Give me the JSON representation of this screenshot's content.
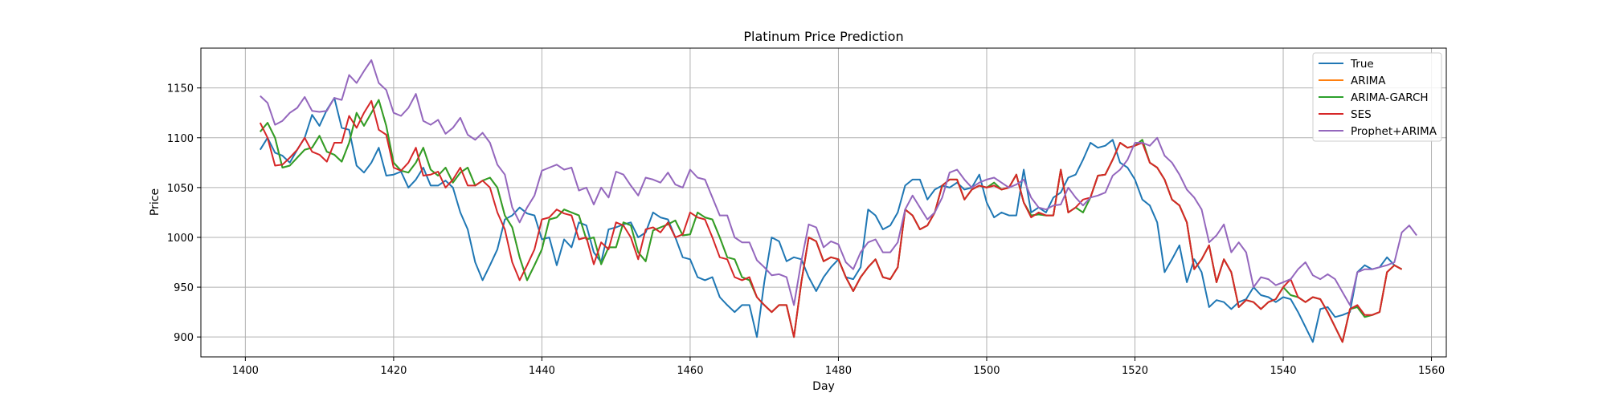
{
  "chart_data": {
    "type": "line",
    "title": "Platinum Price Prediction",
    "xlabel": "Day",
    "ylabel": "Price",
    "xlim": [
      1394,
      1562
    ],
    "ylim": [
      880,
      1190
    ],
    "xticks": [
      1400,
      1420,
      1440,
      1460,
      1480,
      1500,
      1520,
      1540,
      1560
    ],
    "yticks": [
      900,
      950,
      1000,
      1050,
      1100,
      1150
    ],
    "grid": true,
    "legend_position": "top-right",
    "x_start": 1402,
    "series": [
      {
        "name": "True",
        "color": "#1f77b4",
        "values": [
          1088,
          1100,
          1085,
          1082,
          1075,
          1088,
          1100,
          1123,
          1112,
          1128,
          1140,
          1110,
          1108,
          1072,
          1065,
          1075,
          1090,
          1062,
          1063,
          1066,
          1050,
          1058,
          1070,
          1052,
          1052,
          1057,
          1050,
          1025,
          1008,
          975,
          957,
          972,
          988,
          1018,
          1022,
          1030,
          1024,
          1022,
          998,
          1000,
          972,
          998,
          990,
          1015,
          1012,
          985,
          975,
          1008,
          1010,
          1013,
          1015,
          1000,
          1005,
          1025,
          1020,
          1018,
          1000,
          980,
          978,
          960,
          957,
          960,
          940,
          932,
          925,
          932,
          932,
          900,
          955,
          1000,
          996,
          976,
          980,
          978,
          960,
          946,
          960,
          970,
          978,
          960,
          958,
          970,
          1028,
          1022,
          1008,
          1012,
          1025,
          1052,
          1058,
          1058,
          1038,
          1048,
          1052,
          1050,
          1055,
          1048,
          1050,
          1063,
          1035,
          1020,
          1025,
          1022,
          1022,
          1068,
          1025,
          1030,
          1025,
          1040,
          1045,
          1060,
          1063,
          1078,
          1095,
          1090,
          1092,
          1098,
          1075,
          1070,
          1058,
          1038,
          1032,
          1015,
          965,
          978,
          992,
          955,
          978,
          965,
          930,
          937,
          935,
          928,
          935,
          938,
          950,
          942,
          940,
          935,
          940,
          938,
          925,
          910,
          895,
          928,
          930,
          920,
          922,
          925,
          965,
          972,
          968,
          970,
          980,
          972,
          968
        ]
      },
      {
        "name": "ARIMA",
        "color": "#ff7f0e",
        "values": [
          1106,
          1115,
          1100,
          1070,
          1072,
          1080,
          1088,
          1090,
          1102,
          1086,
          1083,
          1076,
          1095,
          1125,
          1112,
          1125,
          1138,
          1112,
          1075,
          1067,
          1065,
          1075,
          1090,
          1068,
          1062,
          1070,
          1055,
          1065,
          1070,
          1052,
          1057,
          1060,
          1050,
          1022,
          1010,
          980,
          957,
          972,
          988,
          1018,
          1020,
          1028,
          1025,
          1022,
          998,
          1000,
          973,
          990,
          990,
          1015,
          1012,
          985,
          976,
          1007,
          1010,
          1013,
          1017,
          1002,
          1003,
          1025,
          1020,
          1018,
          1000,
          980,
          978,
          960,
          957,
          940,
          932,
          925,
          932,
          932,
          900,
          955,
          1000,
          996,
          976,
          980,
          978,
          960,
          946,
          960,
          970,
          978,
          960,
          958,
          970,
          1028,
          1022,
          1008,
          1012,
          1025,
          1052,
          1058,
          1058,
          1038,
          1048,
          1052,
          1050,
          1055,
          1048,
          1050,
          1063,
          1035,
          1022,
          1023,
          1022,
          1022,
          1068,
          1025,
          1030,
          1025,
          1040,
          1062,
          1063,
          1078,
          1095,
          1090,
          1092,
          1098,
          1075,
          1070,
          1058,
          1038,
          1032,
          1015,
          968,
          978,
          992,
          955,
          978,
          965,
          930,
          937,
          935,
          928,
          935,
          938,
          950,
          942,
          940,
          935,
          940,
          938,
          925,
          910,
          895,
          928,
          930,
          920,
          922,
          925,
          965,
          972,
          968
        ]
      },
      {
        "name": "ARIMA-GARCH",
        "color": "#2ca02c",
        "values": [
          1106,
          1115,
          1100,
          1070,
          1072,
          1080,
          1088,
          1090,
          1102,
          1086,
          1083,
          1076,
          1095,
          1125,
          1112,
          1125,
          1138,
          1112,
          1075,
          1067,
          1065,
          1075,
          1090,
          1068,
          1062,
          1070,
          1055,
          1065,
          1070,
          1052,
          1057,
          1060,
          1050,
          1022,
          1010,
          980,
          957,
          972,
          988,
          1018,
          1020,
          1028,
          1025,
          1022,
          998,
          1000,
          973,
          990,
          990,
          1015,
          1012,
          985,
          976,
          1007,
          1010,
          1013,
          1017,
          1002,
          1003,
          1025,
          1020,
          1018,
          1000,
          980,
          978,
          960,
          957,
          940,
          932,
          925,
          932,
          932,
          900,
          955,
          1000,
          996,
          976,
          980,
          978,
          960,
          946,
          960,
          970,
          978,
          960,
          958,
          970,
          1028,
          1022,
          1008,
          1012,
          1025,
          1052,
          1058,
          1058,
          1038,
          1048,
          1052,
          1050,
          1055,
          1048,
          1050,
          1063,
          1035,
          1022,
          1023,
          1022,
          1022,
          1068,
          1025,
          1030,
          1025,
          1040,
          1062,
          1063,
          1078,
          1095,
          1090,
          1092,
          1098,
          1075,
          1070,
          1058,
          1038,
          1032,
          1015,
          968,
          978,
          992,
          955,
          978,
          965,
          930,
          937,
          935,
          928,
          935,
          938,
          950,
          942,
          940,
          935,
          940,
          938,
          925,
          910,
          895,
          928,
          930,
          920,
          922,
          925,
          965,
          972,
          968
        ]
      },
      {
        "name": "SES",
        "color": "#d62728",
        "values": [
          1115,
          1100,
          1072,
          1073,
          1080,
          1088,
          1100,
          1086,
          1083,
          1076,
          1095,
          1095,
          1122,
          1110,
          1125,
          1137,
          1108,
          1103,
          1070,
          1067,
          1075,
          1090,
          1062,
          1063,
          1066,
          1050,
          1058,
          1070,
          1052,
          1052,
          1057,
          1050,
          1025,
          1008,
          975,
          957,
          972,
          988,
          1018,
          1020,
          1028,
          1024,
          1022,
          998,
          1000,
          973,
          995,
          988,
          1015,
          1012,
          1000,
          978,
          1008,
          1010,
          1005,
          1015,
          1000,
          1003,
          1025,
          1020,
          1018,
          1000,
          980,
          978,
          960,
          957,
          960,
          940,
          932,
          925,
          932,
          932,
          900,
          955,
          1000,
          996,
          976,
          980,
          978,
          960,
          946,
          960,
          970,
          978,
          960,
          958,
          970,
          1028,
          1022,
          1008,
          1012,
          1025,
          1052,
          1058,
          1058,
          1038,
          1048,
          1052,
          1050,
          1052,
          1048,
          1050,
          1063,
          1035,
          1020,
          1025,
          1022,
          1022,
          1068,
          1025,
          1030,
          1038,
          1040,
          1062,
          1063,
          1078,
          1095,
          1090,
          1092,
          1095,
          1075,
          1070,
          1058,
          1038,
          1032,
          1015,
          968,
          978,
          992,
          955,
          978,
          965,
          930,
          937,
          935,
          928,
          935,
          938,
          950,
          958,
          940,
          935,
          940,
          938,
          925,
          910,
          895,
          928,
          932,
          922,
          922,
          925,
          965,
          972,
          968
        ]
      },
      {
        "name": "Prophet+ARIMA",
        "color": "#9467bd",
        "values": [
          1142,
          1135,
          1113,
          1117,
          1125,
          1130,
          1141,
          1127,
          1126,
          1127,
          1140,
          1138,
          1163,
          1155,
          1167,
          1178,
          1155,
          1148,
          1125,
          1122,
          1130,
          1144,
          1117,
          1113,
          1118,
          1104,
          1110,
          1120,
          1103,
          1098,
          1105,
          1095,
          1073,
          1063,
          1030,
          1015,
          1030,
          1042,
          1067,
          1070,
          1073,
          1068,
          1070,
          1047,
          1050,
          1033,
          1050,
          1040,
          1066,
          1063,
          1052,
          1042,
          1060,
          1058,
          1055,
          1065,
          1053,
          1050,
          1068,
          1060,
          1058,
          1040,
          1022,
          1022,
          1000,
          995,
          995,
          977,
          970,
          962,
          963,
          960,
          932,
          976,
          1013,
          1010,
          990,
          996,
          993,
          975,
          968,
          985,
          995,
          998,
          985,
          985,
          995,
          1028,
          1042,
          1030,
          1018,
          1025,
          1040,
          1065,
          1068,
          1058,
          1050,
          1055,
          1058,
          1060,
          1055,
          1050,
          1053,
          1058,
          1040,
          1030,
          1028,
          1032,
          1033,
          1050,
          1040,
          1032,
          1040,
          1042,
          1045,
          1062,
          1068,
          1078,
          1095,
          1095,
          1092,
          1100,
          1082,
          1075,
          1063,
          1048,
          1040,
          1028,
          995,
          1002,
          1013,
          985,
          995,
          985,
          950,
          960,
          958,
          952,
          955,
          958,
          968,
          975,
          962,
          958,
          963,
          958,
          945,
          932,
          965,
          968,
          968,
          970,
          972,
          975,
          1005,
          1012,
          1002
        ]
      }
    ]
  }
}
